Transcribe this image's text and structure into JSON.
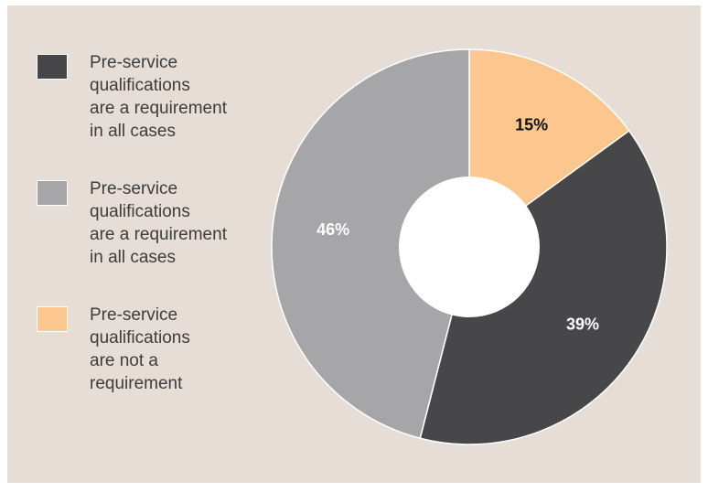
{
  "chart_data": {
    "type": "pie",
    "donut": true,
    "start": "top",
    "direction": "clockwise",
    "legend_position": "left",
    "slices": [
      {
        "value": 15,
        "label": "15%",
        "color": "#fbc78e",
        "label_color": "#111111",
        "legend_lines": [
          "Pre-service",
          "qualifications",
          "are not a",
          "requirement"
        ]
      },
      {
        "value": 39,
        "label": "39%",
        "color": "#47474a",
        "label_color": "#ffffff",
        "legend_lines": [
          "Pre-service",
          "qualifications",
          "are a requirement",
          "in all cases"
        ]
      },
      {
        "value": 46,
        "label": "46%",
        "color": "#a6a6a8",
        "label_color": "#ffffff",
        "legend_lines": [
          "Pre-service",
          "qualifications",
          "are a requirement",
          "in all cases"
        ]
      }
    ],
    "legend_order": [
      1,
      2,
      0
    ]
  }
}
